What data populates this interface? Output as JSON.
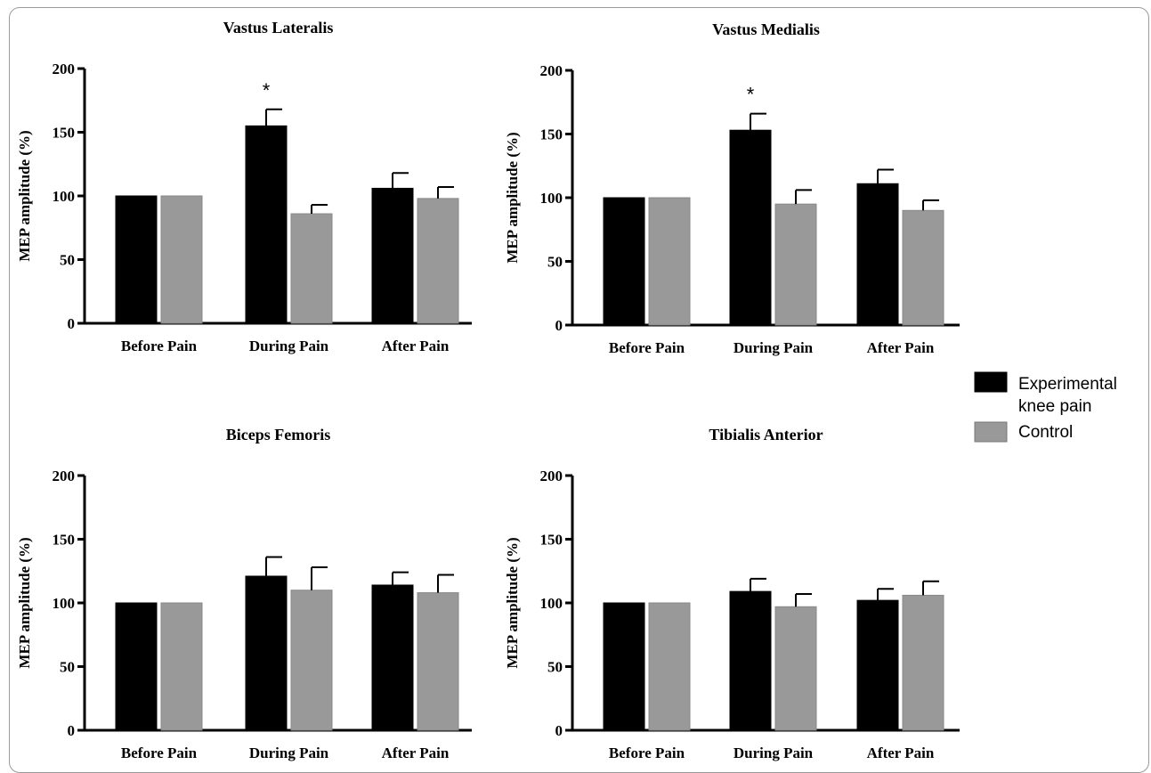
{
  "legend": {
    "items": [
      {
        "label_line1": "Experimental",
        "label_line2": "knee pain",
        "color": "#000000"
      },
      {
        "label_line1": "Control",
        "label_line2": "",
        "color": "#999999"
      }
    ]
  },
  "chart_data": [
    {
      "type": "bar",
      "title": "Vastus Lateralis",
      "ylabel": "MEP amplitude (%)",
      "categories": [
        "Before Pain",
        "During Pain",
        "After Pain"
      ],
      "ylim": [
        0,
        200
      ],
      "yticks": [
        0,
        50,
        100,
        150,
        200
      ],
      "series": [
        {
          "name": "Experimental knee pain",
          "color": "#000000",
          "values": [
            100,
            155,
            106
          ],
          "errors": [
            0,
            13,
            12
          ]
        },
        {
          "name": "Control",
          "color": "#999999",
          "values": [
            100,
            86,
            98
          ],
          "errors": [
            0,
            7,
            9
          ]
        }
      ],
      "annotations": [
        {
          "text": "*",
          "category": "During Pain",
          "series": "Experimental knee pain"
        }
      ]
    },
    {
      "type": "bar",
      "title": "Vastus Medialis",
      "ylabel": "MEP amplitude (%)",
      "categories": [
        "Before Pain",
        "During Pain",
        "After Pain"
      ],
      "ylim": [
        0,
        200
      ],
      "yticks": [
        0,
        50,
        100,
        150,
        200
      ],
      "series": [
        {
          "name": "Experimental knee pain",
          "color": "#000000",
          "values": [
            100,
            153,
            111
          ],
          "errors": [
            0,
            13,
            11
          ]
        },
        {
          "name": "Control",
          "color": "#999999",
          "values": [
            100,
            95,
            90
          ],
          "errors": [
            0,
            11,
            8
          ]
        }
      ],
      "annotations": [
        {
          "text": "*",
          "category": "During Pain",
          "series": "Experimental knee pain"
        }
      ]
    },
    {
      "type": "bar",
      "title": "Biceps Femoris",
      "ylabel": "MEP amplitude (%)",
      "categories": [
        "Before Pain",
        "During Pain",
        "After Pain"
      ],
      "ylim": [
        0,
        200
      ],
      "yticks": [
        0,
        50,
        100,
        150,
        200
      ],
      "series": [
        {
          "name": "Experimental knee pain",
          "color": "#000000",
          "values": [
            100,
            121,
            114
          ],
          "errors": [
            0,
            15,
            10
          ]
        },
        {
          "name": "Control",
          "color": "#999999",
          "values": [
            100,
            110,
            108
          ],
          "errors": [
            0,
            18,
            14
          ]
        }
      ],
      "annotations": []
    },
    {
      "type": "bar",
      "title": "Tibialis Anterior",
      "ylabel": "MEP amplitude (%)",
      "categories": [
        "Before Pain",
        "During Pain",
        "After Pain"
      ],
      "ylim": [
        0,
        200
      ],
      "yticks": [
        0,
        50,
        100,
        150,
        200
      ],
      "series": [
        {
          "name": "Experimental knee pain",
          "color": "#000000",
          "values": [
            100,
            109,
            102
          ],
          "errors": [
            0,
            10,
            9
          ]
        },
        {
          "name": "Control",
          "color": "#999999",
          "values": [
            100,
            97,
            106
          ],
          "errors": [
            0,
            10,
            11
          ]
        }
      ],
      "annotations": []
    }
  ]
}
